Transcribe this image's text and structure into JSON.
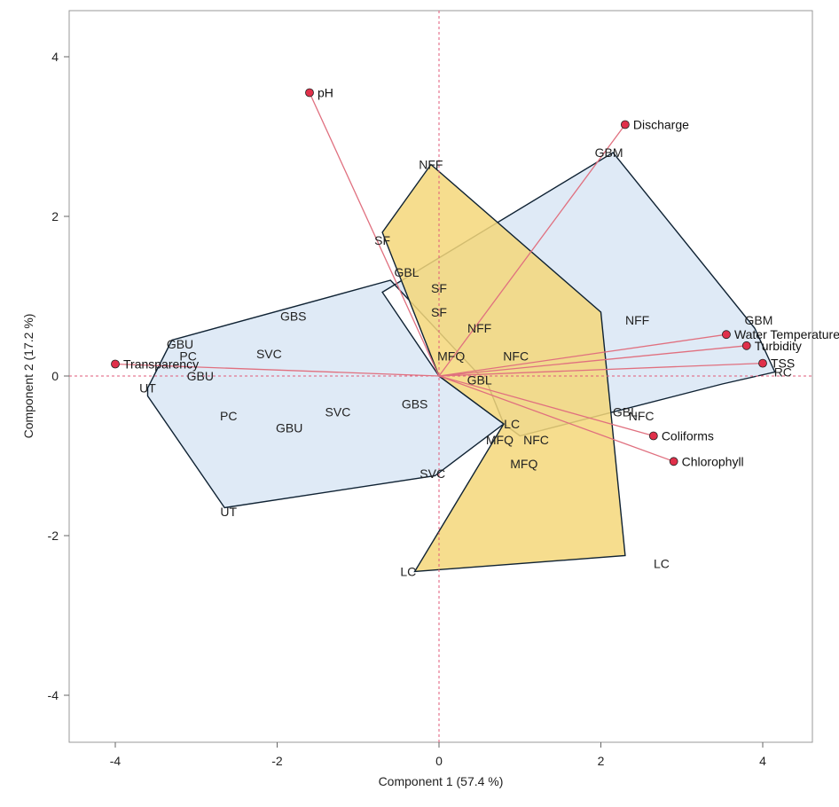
{
  "chart_data": {
    "type": "scatter",
    "subtype": "pca-biplot",
    "xlabel": "Component 1  (57.4 %)",
    "ylabel": "Component 2  (17.2 %)",
    "xlim": [
      -4.6,
      4.6
    ],
    "ylim": [
      -4.6,
      4.5
    ],
    "xticks": [
      -4,
      -2,
      0,
      2,
      4
    ],
    "yticks": [
      -4,
      -2,
      0,
      2,
      4
    ],
    "reference_lines": {
      "x": 0,
      "y": 0,
      "color": "#e05a78"
    },
    "colors": {
      "hull_blue_fill": "#dce8f5",
      "hull_yellow_fill": "#f5d77a",
      "hull_stroke": "#0f2233",
      "vector": "#e0707f",
      "vector_point": "#e0304a",
      "frame": "#999999"
    },
    "hulls": [
      {
        "color": "blue",
        "points": [
          [
            -3.3,
            0.45
          ],
          [
            -3.6,
            -0.15
          ],
          [
            -3.6,
            -0.25
          ],
          [
            -2.65,
            -1.65
          ],
          [
            -0.05,
            -1.25
          ],
          [
            0.8,
            -0.6
          ],
          [
            0.0,
            0.0
          ],
          [
            -0.7,
            1.05
          ],
          [
            2.15,
            2.8
          ],
          [
            3.9,
            0.6
          ],
          [
            4.15,
            0.05
          ],
          [
            3.5,
            -0.1
          ],
          [
            1.0,
            -0.75
          ],
          [
            0.8,
            -0.6
          ],
          [
            0.6,
            -0.1
          ],
          [
            -0.6,
            1.2
          ]
        ]
      },
      {
        "color": "yellow",
        "points": [
          [
            -0.7,
            1.8
          ],
          [
            -0.1,
            2.65
          ],
          [
            2.0,
            0.8
          ],
          [
            2.3,
            -2.25
          ],
          [
            -0.3,
            -2.45
          ],
          [
            0.8,
            -0.6
          ],
          [
            0.0,
            0.0
          ],
          [
            -0.7,
            1.8
          ]
        ]
      }
    ],
    "observations": [
      {
        "label": "NFF",
        "x": -0.1,
        "y": 2.65
      },
      {
        "label": "GBM",
        "x": 2.1,
        "y": 2.8
      },
      {
        "label": "SF",
        "x": -0.7,
        "y": 1.7
      },
      {
        "label": "GBL",
        "x": -0.4,
        "y": 1.3
      },
      {
        "label": "SF",
        "x": 0.0,
        "y": 1.1
      },
      {
        "label": "SF",
        "x": 0.0,
        "y": 0.8
      },
      {
        "label": "NFF",
        "x": 0.5,
        "y": 0.6
      },
      {
        "label": "NFF",
        "x": 2.45,
        "y": 0.7
      },
      {
        "label": "NFC",
        "x": 0.95,
        "y": 0.25
      },
      {
        "label": "MFQ",
        "x": 0.15,
        "y": 0.25
      },
      {
        "label": "GBL",
        "x": 0.5,
        "y": -0.05
      },
      {
        "label": "GBM",
        "x": 3.95,
        "y": 0.7
      },
      {
        "label": "GBS",
        "x": -1.8,
        "y": 0.75
      },
      {
        "label": "GBU",
        "x": -3.2,
        "y": 0.4
      },
      {
        "label": "PC",
        "x": -3.1,
        "y": 0.25
      },
      {
        "label": "SVC",
        "x": -2.1,
        "y": 0.28
      },
      {
        "label": "GBU",
        "x": -2.95,
        "y": 0.0
      },
      {
        "label": "UT",
        "x": -3.6,
        "y": -0.15
      },
      {
        "label": "PC",
        "x": -2.6,
        "y": -0.5
      },
      {
        "label": "SVC",
        "x": -1.25,
        "y": -0.45
      },
      {
        "label": "GBU",
        "x": -1.85,
        "y": -0.65
      },
      {
        "label": "GBS",
        "x": -0.3,
        "y": -0.35
      },
      {
        "label": "LC",
        "x": 0.9,
        "y": -0.6
      },
      {
        "label": "MFQ",
        "x": 0.75,
        "y": -0.8
      },
      {
        "label": "NFC",
        "x": 1.2,
        "y": -0.8
      },
      {
        "label": "MFQ",
        "x": 1.05,
        "y": -1.1
      },
      {
        "label": "GBL",
        "x": 2.3,
        "y": -0.45
      },
      {
        "label": "NFC",
        "x": 2.5,
        "y": -0.5
      },
      {
        "label": "RC",
        "x": 4.25,
        "y": 0.05
      },
      {
        "label": "SVC",
        "x": -0.08,
        "y": -1.22
      },
      {
        "label": "UT",
        "x": -2.6,
        "y": -1.7
      },
      {
        "label": "LC",
        "x": -0.38,
        "y": -2.45
      },
      {
        "label": "LC",
        "x": 2.75,
        "y": -2.35
      }
    ],
    "variables": [
      {
        "label": "pH",
        "x": -1.6,
        "y": 3.55
      },
      {
        "label": "Discharge",
        "x": 2.3,
        "y": 3.15
      },
      {
        "label": "Water Temperature",
        "x": 3.55,
        "y": 0.52
      },
      {
        "label": "Turbidity",
        "x": 3.8,
        "y": 0.38
      },
      {
        "label": "TSS",
        "x": 4.0,
        "y": 0.16
      },
      {
        "label": "Transparency",
        "x": -4.0,
        "y": 0.15
      },
      {
        "label": "Coliforms",
        "x": 2.65,
        "y": -0.75
      },
      {
        "label": "Chlorophyll",
        "x": 2.9,
        "y": -1.07
      }
    ]
  }
}
